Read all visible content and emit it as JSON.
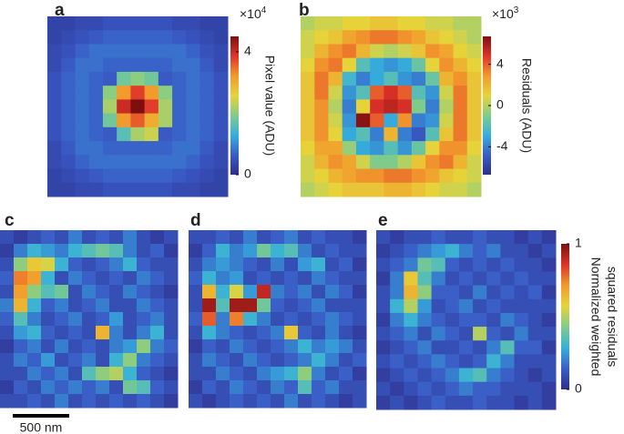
{
  "chart_data": [
    {
      "type": "heatmap",
      "panel_label": "a",
      "clim": [
        0,
        4.5
      ],
      "yticks": [
        0,
        4
      ],
      "colorbar_label": [
        "Pixel value (ADU)"
      ],
      "multiplier_base": "×10",
      "multiplier_exponent": "4",
      "colormap": [
        "#2d2f8c",
        "#3a5cc7",
        "#36b0dc",
        "#80cc8a",
        "#e6d43a",
        "#f29a2c",
        "#e0332a",
        "#7d0f0f"
      ],
      "values": [
        [
          0.3,
          0.3,
          0.4,
          0.4,
          0.5,
          0.5,
          0.5,
          0.5,
          0.5,
          0.4,
          0.4,
          0.3,
          0.3
        ],
        [
          0.3,
          0.4,
          0.5,
          0.6,
          0.7,
          0.7,
          0.7,
          0.7,
          0.7,
          0.6,
          0.5,
          0.4,
          0.3
        ],
        [
          0.4,
          0.5,
          0.7,
          0.8,
          0.8,
          0.8,
          0.8,
          0.8,
          0.8,
          0.8,
          0.7,
          0.5,
          0.4
        ],
        [
          0.4,
          0.6,
          0.8,
          0.8,
          0.7,
          0.7,
          0.7,
          0.7,
          0.7,
          0.8,
          0.8,
          0.6,
          0.4
        ],
        [
          0.5,
          0.7,
          0.8,
          0.7,
          0.6,
          1.8,
          2.0,
          1.8,
          0.6,
          0.7,
          0.8,
          0.7,
          0.5
        ],
        [
          0.5,
          0.7,
          0.8,
          0.7,
          2.0,
          3.2,
          3.8,
          3.2,
          2.0,
          0.7,
          0.8,
          0.7,
          0.5
        ],
        [
          0.5,
          0.7,
          0.8,
          0.7,
          2.2,
          4.0,
          4.5,
          3.8,
          2.2,
          0.7,
          0.8,
          0.7,
          0.5
        ],
        [
          0.5,
          0.7,
          0.8,
          0.7,
          1.8,
          3.2,
          3.6,
          3.0,
          2.2,
          0.7,
          0.8,
          0.7,
          0.5
        ],
        [
          0.5,
          0.7,
          0.8,
          0.7,
          0.6,
          1.6,
          2.2,
          2.4,
          0.6,
          0.7,
          0.8,
          0.7,
          0.5
        ],
        [
          0.4,
          0.6,
          0.8,
          0.8,
          0.7,
          0.7,
          0.7,
          0.7,
          0.7,
          0.8,
          0.8,
          0.6,
          0.4
        ],
        [
          0.4,
          0.5,
          0.7,
          0.8,
          0.8,
          0.8,
          0.8,
          0.8,
          0.8,
          0.8,
          0.7,
          0.5,
          0.4
        ],
        [
          0.3,
          0.4,
          0.5,
          0.6,
          0.7,
          0.7,
          0.7,
          0.7,
          0.7,
          0.6,
          0.5,
          0.4,
          0.3
        ],
        [
          0.3,
          0.3,
          0.4,
          0.4,
          0.5,
          0.5,
          0.5,
          0.5,
          0.5,
          0.4,
          0.4,
          0.3,
          0.3
        ]
      ]
    },
    {
      "type": "heatmap",
      "panel_label": "b",
      "clim": [
        -6.7,
        6.7
      ],
      "yticks": [
        -4,
        0,
        4
      ],
      "colorbar_label": [
        "Residuals (ADU)"
      ],
      "multiplier_base": "×10",
      "multiplier_exponent": "3",
      "colormap": [
        "#2d2f8c",
        "#3a5cc7",
        "#36b0dc",
        "#80cc8a",
        "#e6d43a",
        "#f29a2c",
        "#e0332a",
        "#7d0f0f"
      ],
      "values": [
        [
          0,
          0.5,
          0.5,
          1,
          1,
          1.5,
          1.5,
          1,
          1,
          0.5,
          0.5,
          0,
          0
        ],
        [
          0.5,
          1,
          1.5,
          2.5,
          3,
          3.5,
          3.5,
          3,
          2.5,
          1.5,
          1,
          0.5,
          0
        ],
        [
          0.5,
          2,
          3,
          3.5,
          2,
          0.5,
          0,
          0.5,
          1.5,
          3,
          2.5,
          1,
          0.5
        ],
        [
          1,
          3,
          3.5,
          1,
          -2,
          -3,
          -3.5,
          -3,
          -1.5,
          1,
          3,
          2,
          1
        ],
        [
          1.5,
          3.5,
          2,
          -2.5,
          -4,
          -3,
          -2,
          -3.5,
          -4,
          -1.5,
          2,
          3,
          1.5
        ],
        [
          1.5,
          3.5,
          0.5,
          -3.5,
          -2,
          4,
          5,
          4,
          -2,
          -3.5,
          0.5,
          3.5,
          1.5
        ],
        [
          1.5,
          3,
          0,
          -4,
          1,
          5,
          5.5,
          5,
          -1,
          -4,
          0,
          3.5,
          1.5
        ],
        [
          1.5,
          3,
          0.5,
          -3.5,
          6.5,
          4,
          -3,
          3,
          -4,
          -3.5,
          0.5,
          3.5,
          1.5
        ],
        [
          1.5,
          3,
          1,
          -3,
          -2,
          -4,
          2,
          -4,
          -5,
          -2,
          1.5,
          3.5,
          1.5
        ],
        [
          1,
          2.5,
          2.5,
          -0.5,
          -3,
          -3.5,
          -2,
          -3.5,
          -1.5,
          1,
          3,
          3,
          1
        ],
        [
          0.5,
          2,
          3,
          2.5,
          0.5,
          -1,
          -1,
          0,
          1.5,
          3,
          3.5,
          2,
          0.5
        ],
        [
          0.5,
          1,
          2,
          2.5,
          3,
          3,
          3.5,
          3.5,
          3,
          2.5,
          1.5,
          1,
          0.5
        ],
        [
          0,
          0.5,
          1,
          1.5,
          1.5,
          1.5,
          2,
          2,
          1.5,
          1,
          0.5,
          0.5,
          0
        ]
      ]
    },
    {
      "type": "heatmap",
      "panel_label": "c",
      "clim": [
        0,
        1
      ],
      "colormap": [
        "#2d2f8c",
        "#3a5cc7",
        "#36b0dc",
        "#80cc8a",
        "#e6d43a",
        "#f29a2c",
        "#e0332a",
        "#7d0f0f"
      ],
      "values": [
        [
          0.1,
          0.05,
          0.1,
          0.15,
          0.1,
          0.2,
          0.1,
          0.15,
          0.1,
          0.2,
          0.1,
          0.05,
          0.1
        ],
        [
          0.05,
          0.2,
          0.3,
          0.25,
          0.2,
          0.3,
          0.35,
          0.4,
          0.35,
          0.2,
          0.1,
          0.15,
          0.05
        ],
        [
          0.1,
          0.45,
          0.6,
          0.55,
          0.3,
          0.15,
          0.1,
          0.15,
          0.2,
          0.3,
          0.15,
          0.1,
          0.1
        ],
        [
          0.15,
          0.75,
          0.7,
          0.3,
          0.1,
          0.2,
          0.15,
          0.1,
          0.15,
          0.1,
          0.2,
          0.15,
          0.1
        ],
        [
          0.1,
          0.7,
          0.45,
          0.35,
          0.4,
          0.1,
          0.2,
          0.15,
          0.1,
          0.2,
          0.15,
          0.1,
          0.05
        ],
        [
          0.2,
          0.65,
          0.3,
          0.15,
          0.2,
          0.1,
          0.15,
          0.2,
          0.1,
          0.1,
          0.2,
          0.15,
          0.1
        ],
        [
          0.15,
          0.35,
          0.2,
          0.1,
          0.15,
          0.2,
          0.1,
          0.15,
          0.25,
          0.1,
          0.15,
          0.2,
          0.1
        ],
        [
          0.1,
          0.25,
          0.3,
          0.15,
          0.1,
          0.15,
          0.1,
          0.65,
          0.2,
          0.1,
          0.2,
          0.3,
          0.1
        ],
        [
          0.05,
          0.15,
          0.2,
          0.1,
          0.2,
          0.1,
          0.15,
          0.1,
          0.2,
          0.25,
          0.45,
          0.2,
          0.15
        ],
        [
          0.1,
          0.2,
          0.15,
          0.25,
          0.1,
          0.15,
          0.2,
          0.1,
          0.3,
          0.45,
          0.2,
          0.15,
          0.1
        ],
        [
          0.1,
          0.1,
          0.2,
          0.15,
          0.2,
          0.1,
          0.35,
          0.45,
          0.5,
          0.3,
          0.15,
          0.1,
          0.05
        ],
        [
          0.05,
          0.15,
          0.1,
          0.2,
          0.15,
          0.2,
          0.15,
          0.2,
          0.1,
          0.4,
          0.35,
          0.15,
          0.1
        ],
        [
          0.1,
          0.1,
          0.15,
          0.1,
          0.2,
          0.1,
          0.15,
          0.1,
          0.15,
          0.1,
          0.15,
          0.1,
          0.05
        ]
      ]
    },
    {
      "type": "heatmap",
      "panel_label": "d",
      "clim": [
        0,
        1
      ],
      "colormap": [
        "#2d2f8c",
        "#3a5cc7",
        "#36b0dc",
        "#80cc8a",
        "#e6d43a",
        "#f29a2c",
        "#e0332a",
        "#7d0f0f"
      ],
      "values": [
        [
          0.1,
          0.1,
          0.15,
          0.1,
          0.2,
          0.1,
          0.15,
          0.2,
          0.1,
          0.15,
          0.1,
          0.1,
          0.05
        ],
        [
          0.05,
          0.15,
          0.3,
          0.2,
          0.25,
          0.4,
          0.3,
          0.35,
          0.2,
          0.1,
          0.15,
          0.1,
          0.1
        ],
        [
          0.1,
          0.2,
          0.25,
          0.2,
          0.15,
          0.1,
          0.2,
          0.1,
          0.25,
          0.3,
          0.1,
          0.15,
          0.05
        ],
        [
          0.15,
          0.3,
          0.2,
          0.25,
          0.1,
          0.15,
          0.1,
          0.15,
          0.1,
          0.2,
          0.15,
          0.1,
          0.1
        ],
        [
          0.1,
          0.65,
          0.3,
          0.55,
          0.25,
          0.9,
          0.2,
          0.15,
          0.2,
          0.1,
          0.2,
          0.15,
          0.05
        ],
        [
          0.1,
          0.95,
          0.35,
          0.95,
          0.95,
          0.4,
          0.15,
          0.1,
          0.15,
          0.2,
          0.1,
          0.1,
          0.1
        ],
        [
          0.15,
          0.8,
          0.2,
          0.75,
          0.3,
          0.2,
          0.1,
          0.15,
          0.1,
          0.15,
          0.2,
          0.15,
          0.1
        ],
        [
          0.1,
          0.3,
          0.2,
          0.15,
          0.1,
          0.15,
          0.2,
          0.6,
          0.15,
          0.1,
          0.2,
          0.1,
          0.05
        ],
        [
          0.05,
          0.15,
          0.1,
          0.2,
          0.15,
          0.1,
          0.15,
          0.2,
          0.3,
          0.2,
          0.25,
          0.2,
          0.1
        ],
        [
          0.1,
          0.2,
          0.15,
          0.1,
          0.2,
          0.15,
          0.1,
          0.15,
          0.2,
          0.3,
          0.2,
          0.1,
          0.15
        ],
        [
          0.1,
          0.1,
          0.2,
          0.15,
          0.1,
          0.2,
          0.25,
          0.3,
          0.45,
          0.2,
          0.1,
          0.15,
          0.05
        ],
        [
          0.05,
          0.15,
          0.1,
          0.2,
          0.15,
          0.1,
          0.2,
          0.15,
          0.35,
          0.15,
          0.2,
          0.1,
          0.1
        ],
        [
          0.1,
          0.05,
          0.1,
          0.15,
          0.1,
          0.15,
          0.1,
          0.2,
          0.1,
          0.15,
          0.1,
          0.05,
          0.1
        ]
      ]
    },
    {
      "type": "heatmap",
      "panel_label": "e",
      "clim": [
        0,
        1
      ],
      "yticks": [
        0,
        1
      ],
      "colorbar_label": [
        "Normalized weighted",
        "squared residuals"
      ],
      "colormap": [
        "#2d2f8c",
        "#3a5cc7",
        "#36b0dc",
        "#80cc8a",
        "#e6d43a",
        "#f29a2c",
        "#e0332a",
        "#7d0f0f"
      ],
      "values": [
        [
          0.1,
          0.05,
          0.1,
          0.1,
          0.15,
          0.1,
          0.1,
          0.15,
          0.1,
          0.1,
          0.05,
          0.1,
          0.05
        ],
        [
          0.05,
          0.1,
          0.15,
          0.2,
          0.25,
          0.3,
          0.2,
          0.15,
          0.2,
          0.1,
          0.1,
          0.05,
          0.1
        ],
        [
          0.1,
          0.15,
          0.2,
          0.4,
          0.35,
          0.15,
          0.1,
          0.15,
          0.1,
          0.15,
          0.1,
          0.1,
          0.05
        ],
        [
          0.05,
          0.2,
          0.6,
          0.35,
          0.2,
          0.1,
          0.15,
          0.1,
          0.15,
          0.1,
          0.15,
          0.1,
          0.1
        ],
        [
          0.1,
          0.2,
          0.65,
          0.45,
          0.15,
          0.15,
          0.1,
          0.2,
          0.1,
          0.15,
          0.1,
          0.15,
          0.05
        ],
        [
          0.1,
          0.3,
          0.5,
          0.25,
          0.1,
          0.15,
          0.2,
          0.1,
          0.15,
          0.1,
          0.1,
          0.1,
          0.1
        ],
        [
          0.05,
          0.2,
          0.3,
          0.2,
          0.15,
          0.1,
          0.15,
          0.15,
          0.1,
          0.2,
          0.15,
          0.1,
          0.05
        ],
        [
          0.1,
          0.15,
          0.2,
          0.1,
          0.2,
          0.15,
          0.1,
          0.5,
          0.15,
          0.1,
          0.2,
          0.1,
          0.1
        ],
        [
          0.05,
          0.1,
          0.15,
          0.2,
          0.1,
          0.1,
          0.15,
          0.1,
          0.2,
          0.35,
          0.15,
          0.15,
          0.05
        ],
        [
          0.1,
          0.15,
          0.1,
          0.15,
          0.2,
          0.15,
          0.1,
          0.15,
          0.3,
          0.2,
          0.1,
          0.1,
          0.1
        ],
        [
          0.05,
          0.1,
          0.15,
          0.1,
          0.15,
          0.2,
          0.3,
          0.35,
          0.2,
          0.15,
          0.1,
          0.05,
          0.1
        ],
        [
          0.1,
          0.05,
          0.1,
          0.15,
          0.1,
          0.15,
          0.2,
          0.15,
          0.15,
          0.1,
          0.1,
          0.1,
          0.05
        ],
        [
          0.05,
          0.1,
          0.05,
          0.1,
          0.15,
          0.1,
          0.1,
          0.15,
          0.1,
          0.1,
          0.05,
          0.1,
          0.05
        ]
      ]
    }
  ],
  "scale_bar_label": "500 nm"
}
